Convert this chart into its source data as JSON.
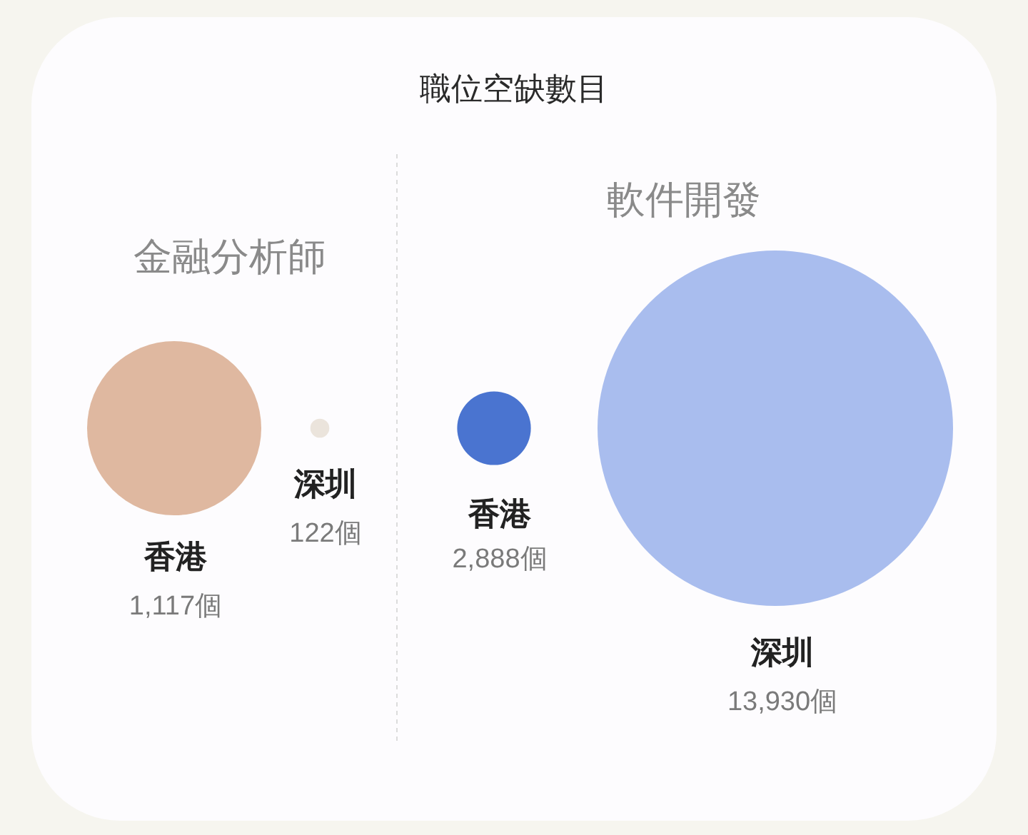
{
  "chart_data": {
    "type": "other",
    "title": "職位空缺數目",
    "categories": [
      "香港",
      "深圳"
    ],
    "series": [
      {
        "name": "金融分析師",
        "colors": [
          "#dfb8a0",
          "#ebe4dc"
        ],
        "values": [
          1117,
          122
        ],
        "value_labels": [
          "1,117個",
          "122個"
        ]
      },
      {
        "name": "軟件開發",
        "colors": [
          "#4a74d0",
          "#a9bdee"
        ],
        "values": [
          2888,
          13930
        ],
        "value_labels": [
          "2,888個",
          "13,930個"
        ]
      }
    ]
  }
}
